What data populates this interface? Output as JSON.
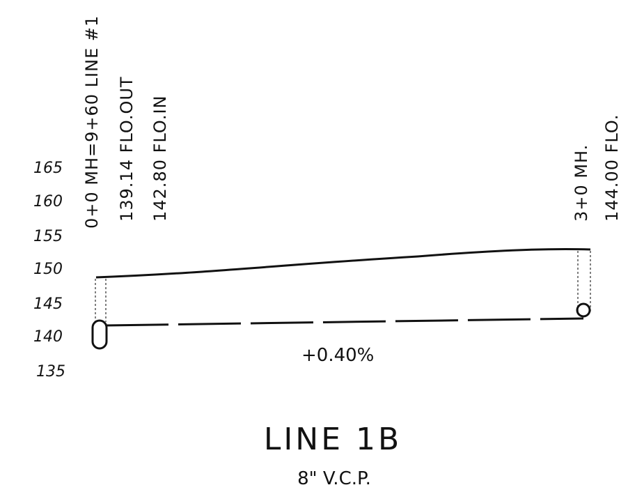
{
  "elevation_labels": [
    "165",
    "160",
    "155",
    "150",
    "145",
    "140",
    "135"
  ],
  "start_station": {
    "label": "0+0 MH=9+60 LINE #1",
    "flow_out": "139.14 FLO.OUT",
    "flow_in": "142.80 FLO.IN"
  },
  "end_station": {
    "label": "3+0 MH.",
    "flow": "144.00 FLO."
  },
  "slope": "+0.40%",
  "title": "LINE 1B",
  "subtitle": "8\" V.C.P."
}
